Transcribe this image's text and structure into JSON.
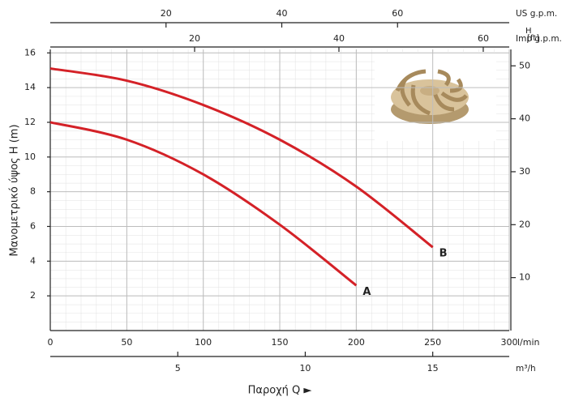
{
  "chart_data": {
    "type": "line",
    "x_label": "Παροχή Q ►",
    "y_label": "Μανομετρικό ύψος H (m)",
    "x_unit": "l/min",
    "xlim": [
      0,
      300
    ],
    "xticks": [
      0,
      50,
      100,
      150,
      200,
      250,
      300
    ],
    "ylim": [
      0,
      16.2
    ],
    "yticks": [
      2,
      4,
      6,
      8,
      10,
      12,
      14,
      16
    ],
    "y2_label": [
      "H",
      "[ft]"
    ],
    "y2lim": [
      0,
      53.1
    ],
    "y2ticks": [
      10,
      20,
      30,
      40,
      50
    ],
    "secondary_x_axes": [
      {
        "label": "m³/h",
        "lim": [
          0,
          18
        ],
        "ticks": [
          5,
          10,
          15
        ]
      },
      {
        "label": "US g.p.m.",
        "lim": [
          0,
          79.3
        ],
        "ticks": [
          20,
          40,
          60
        ]
      },
      {
        "label": "Imp g.p.m.",
        "lim": [
          0,
          63.6
        ],
        "ticks": [
          20,
          40,
          60
        ]
      }
    ],
    "grid": true,
    "series": [
      {
        "name": "A",
        "color": "#d42127",
        "x": [
          0,
          50,
          100,
          150,
          200
        ],
        "values": [
          12,
          11.0,
          9.0,
          6.1,
          2.6
        ]
      },
      {
        "name": "B",
        "color": "#d42127",
        "x": [
          0,
          50,
          100,
          150,
          200,
          250
        ],
        "values": [
          15.1,
          14.4,
          13.0,
          11.0,
          8.3,
          4.8
        ]
      }
    ]
  }
}
